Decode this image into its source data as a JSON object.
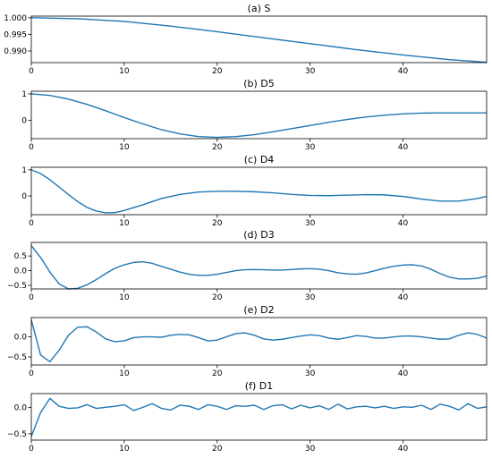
{
  "figure": {
    "line_color": "#1f77b4"
  },
  "chart_data": [
    {
      "type": "line",
      "title": "(a) S",
      "xlim": [
        0,
        49
      ],
      "ylim": [
        0.9865,
        1.0005
      ],
      "xticks": [
        0,
        10,
        20,
        30,
        40
      ],
      "yticks": [
        0.99,
        0.995,
        1.0
      ],
      "ytick_labels": [
        "0.990",
        "0.995",
        "1.000"
      ],
      "grid": false,
      "x": [
        0,
        5,
        10,
        15,
        20,
        25,
        30,
        35,
        40,
        45,
        49
      ],
      "values": [
        1.0,
        0.9997,
        0.9989,
        0.9975,
        0.9958,
        0.994,
        0.9922,
        0.9904,
        0.9888,
        0.9874,
        0.9866
      ]
    },
    {
      "type": "line",
      "title": "(b) D5",
      "xlim": [
        0,
        49
      ],
      "ylim": [
        -0.7,
        1.1
      ],
      "xticks": [
        0,
        10,
        20,
        30,
        40
      ],
      "yticks": [
        0,
        1
      ],
      "ytick_labels": [
        "0",
        "1"
      ],
      "grid": false,
      "x": [
        0,
        2,
        4,
        6,
        8,
        10,
        12,
        14,
        16,
        18,
        20,
        22,
        24,
        26,
        28,
        30,
        32,
        34,
        36,
        38,
        40,
        42,
        44,
        46,
        48,
        49
      ],
      "values": [
        1.0,
        0.94,
        0.8,
        0.6,
        0.36,
        0.1,
        -0.14,
        -0.36,
        -0.52,
        -0.62,
        -0.65,
        -0.62,
        -0.55,
        -0.44,
        -0.32,
        -0.2,
        -0.08,
        0.03,
        0.12,
        0.19,
        0.24,
        0.27,
        0.28,
        0.28,
        0.28,
        0.28
      ]
    },
    {
      "type": "line",
      "title": "(c) D4",
      "xlim": [
        0,
        49
      ],
      "ylim": [
        -0.72,
        1.1
      ],
      "xticks": [
        0,
        10,
        20,
        30,
        40
      ],
      "yticks": [
        0,
        1
      ],
      "ytick_labels": [
        "0",
        "1"
      ],
      "grid": false,
      "x": [
        0,
        1,
        2,
        3,
        4,
        5,
        6,
        7,
        8,
        9,
        10,
        12,
        14,
        16,
        18,
        20,
        22,
        24,
        26,
        28,
        30,
        32,
        34,
        36,
        38,
        40,
        42,
        44,
        46,
        48,
        49
      ],
      "values": [
        1.0,
        0.86,
        0.62,
        0.34,
        0.05,
        -0.22,
        -0.44,
        -0.58,
        -0.65,
        -0.64,
        -0.56,
        -0.34,
        -0.1,
        0.06,
        0.15,
        0.18,
        0.18,
        0.16,
        0.12,
        0.06,
        0.02,
        0.01,
        0.03,
        0.05,
        0.04,
        -0.02,
        -0.12,
        -0.2,
        -0.2,
        -0.1,
        -0.02
      ]
    },
    {
      "type": "line",
      "title": "(d) D3",
      "xlim": [
        0,
        49
      ],
      "ylim": [
        -0.62,
        0.96
      ],
      "xticks": [
        0,
        10,
        20,
        30,
        40
      ],
      "yticks": [
        -0.5,
        0.0,
        0.5
      ],
      "ytick_labels": [
        "−0.5",
        "0.0",
        "0.5"
      ],
      "grid": false,
      "x": [
        0,
        1,
        2,
        3,
        4,
        5,
        6,
        7,
        8,
        9,
        10,
        11,
        12,
        13,
        14,
        15,
        16,
        17,
        18,
        19,
        20,
        21,
        22,
        23,
        24,
        25,
        26,
        27,
        28,
        29,
        30,
        31,
        32,
        33,
        34,
        35,
        36,
        37,
        38,
        39,
        40,
        41,
        42,
        43,
        44,
        45,
        46,
        47,
        48,
        49
      ],
      "values": [
        0.85,
        0.45,
        -0.05,
        -0.45,
        -0.62,
        -0.6,
        -0.48,
        -0.3,
        -0.1,
        0.08,
        0.2,
        0.28,
        0.3,
        0.25,
        0.15,
        0.05,
        -0.05,
        -0.12,
        -0.16,
        -0.16,
        -0.12,
        -0.06,
        0.0,
        0.03,
        0.04,
        0.03,
        0.02,
        0.02,
        0.04,
        0.06,
        0.07,
        0.05,
        0.0,
        -0.07,
        -0.11,
        -0.12,
        -0.08,
        0.0,
        0.08,
        0.15,
        0.19,
        0.2,
        0.16,
        0.05,
        -0.1,
        -0.22,
        -0.28,
        -0.28,
        -0.26,
        -0.18
      ]
    },
    {
      "type": "line",
      "title": "(e) D2",
      "xlim": [
        0,
        49
      ],
      "ylim": [
        -0.7,
        0.48
      ],
      "xticks": [
        0,
        10,
        20,
        30,
        40
      ],
      "yticks": [
        -0.5,
        0.0
      ],
      "ytick_labels": [
        "−0.5",
        "0.0"
      ],
      "grid": false,
      "x": [
        0,
        1,
        2,
        3,
        4,
        5,
        6,
        7,
        8,
        9,
        10,
        11,
        12,
        13,
        14,
        15,
        16,
        17,
        18,
        19,
        20,
        21,
        22,
        23,
        24,
        25,
        26,
        27,
        28,
        29,
        30,
        31,
        32,
        33,
        34,
        35,
        36,
        37,
        38,
        39,
        40,
        41,
        42,
        43,
        44,
        45,
        46,
        47,
        48,
        49
      ],
      "values": [
        0.42,
        -0.45,
        -0.62,
        -0.33,
        0.04,
        0.24,
        0.25,
        0.12,
        -0.05,
        -0.12,
        -0.1,
        -0.02,
        0.0,
        0.0,
        -0.01,
        0.04,
        0.06,
        0.05,
        -0.02,
        -0.1,
        -0.08,
        0.0,
        0.08,
        0.1,
        0.04,
        -0.05,
        -0.08,
        -0.06,
        -0.02,
        0.02,
        0.05,
        0.03,
        -0.03,
        -0.06,
        -0.02,
        0.03,
        0.01,
        -0.03,
        -0.03,
        0.0,
        0.02,
        0.02,
        0.0,
        -0.03,
        -0.06,
        -0.05,
        0.04,
        0.1,
        0.06,
        -0.03
      ]
    },
    {
      "type": "line",
      "title": "(f) D1",
      "xlim": [
        0,
        49
      ],
      "ylim": [
        -0.62,
        0.26
      ],
      "xticks": [
        0,
        10,
        20,
        30,
        40
      ],
      "yticks": [
        -0.5,
        0.0
      ],
      "ytick_labels": [
        "−0.5",
        "0.0"
      ],
      "grid": false,
      "x": [
        0,
        1,
        2,
        3,
        4,
        5,
        6,
        7,
        8,
        9,
        10,
        11,
        12,
        13,
        14,
        15,
        16,
        17,
        18,
        19,
        20,
        21,
        22,
        23,
        24,
        25,
        26,
        27,
        28,
        29,
        30,
        31,
        32,
        33,
        34,
        35,
        36,
        37,
        38,
        39,
        40,
        41,
        42,
        43,
        44,
        45,
        46,
        47,
        48,
        49
      ],
      "values": [
        -0.55,
        -0.1,
        0.17,
        0.02,
        -0.02,
        -0.01,
        0.05,
        -0.02,
        0.0,
        0.02,
        0.05,
        -0.06,
        0.0,
        0.07,
        -0.02,
        -0.05,
        0.04,
        0.02,
        -0.04,
        0.05,
        0.02,
        -0.04,
        0.03,
        0.02,
        0.04,
        -0.04,
        0.03,
        0.05,
        -0.03,
        0.04,
        -0.01,
        0.03,
        -0.04,
        0.06,
        -0.03,
        0.01,
        0.02,
        -0.01,
        0.02,
        -0.02,
        0.01,
        0.0,
        0.04,
        -0.04,
        0.06,
        0.02,
        -0.05,
        0.07,
        -0.02,
        0.01
      ]
    }
  ]
}
